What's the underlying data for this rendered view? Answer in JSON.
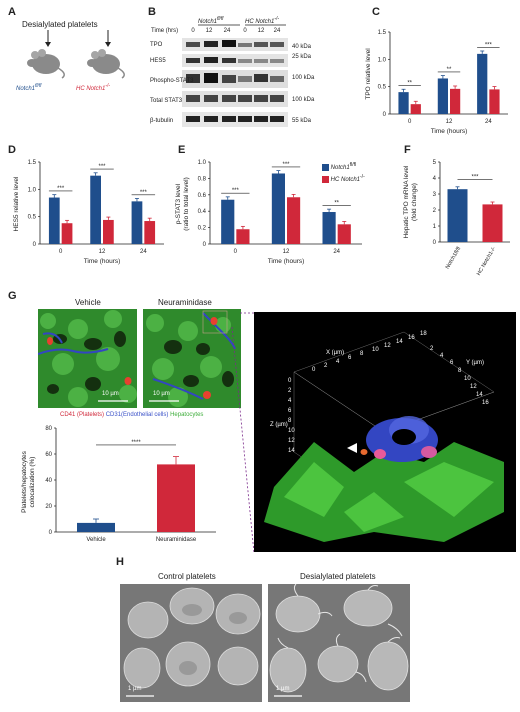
{
  "panel_labels": {
    "A": "A",
    "B": "B",
    "C": "C",
    "D": "D",
    "E": "E",
    "F": "F",
    "G": "G",
    "H": "H"
  },
  "panelA": {
    "title": "Desialylated platelets",
    "mouse1": "Notch1",
    "mouse1_sup": "fl/fl",
    "mouse2": "HC Notch1",
    "mouse2_sup": "-/-"
  },
  "panelB": {
    "group1": "Notch1",
    "group1_sup": "fl/fl",
    "group2": "HC Notch1",
    "group2_sup": "-/-",
    "time_label": "Time (hrs)",
    "times": [
      "0",
      "12",
      "24",
      "0",
      "12",
      "24"
    ],
    "rows": [
      "TPO",
      "HES5",
      "Phospho-STAT3",
      "Total STAT3",
      "β-tubulin"
    ],
    "markers": [
      "40 kDa",
      "25 kDa",
      "100 kDa",
      "100 kDa",
      "55 kDa"
    ]
  },
  "legend": {
    "series1": "Notch1",
    "series1_sup": "fl/fl",
    "series2": "HC Notch1",
    "series2_sup": "-/-"
  },
  "colors": {
    "series1": "#1f4e8c",
    "series2": "#d0283a",
    "green": "#3fae3c",
    "blue": "#3b52c8"
  },
  "chart_data": [
    {
      "id": "C",
      "type": "bar",
      "ylabel": "TPO relative level",
      "xlabel": "Time (hours)",
      "categories": [
        "0",
        "12",
        "24"
      ],
      "ylim": [
        0,
        1.5
      ],
      "yticks": [
        "0",
        "0.5",
        "1.0",
        "1.5"
      ],
      "series": [
        {
          "values": [
            0.4,
            0.65,
            1.1
          ]
        },
        {
          "values": [
            0.18,
            0.46,
            0.45
          ]
        }
      ],
      "significance": [
        "**",
        "**",
        "***"
      ]
    },
    {
      "id": "D",
      "type": "bar",
      "ylabel": "HES5 relative level",
      "xlabel": "Time (hours)",
      "categories": [
        "0",
        "12",
        "24"
      ],
      "ylim": [
        0,
        1.5
      ],
      "yticks": [
        "0",
        "0.5",
        "1.0",
        "1.5"
      ],
      "series": [
        {
          "values": [
            0.85,
            1.25,
            0.78
          ]
        },
        {
          "values": [
            0.38,
            0.44,
            0.42
          ]
        }
      ],
      "significance": [
        "***",
        "***",
        "***"
      ]
    },
    {
      "id": "E",
      "type": "bar",
      "ylabel": "p-STAT3 level (ratio to total level)",
      "xlabel": "Time (hours)",
      "categories": [
        "0",
        "12",
        "24"
      ],
      "ylim": [
        0,
        1.0
      ],
      "yticks": [
        "0",
        "0.2",
        "0.4",
        "0.6",
        "0.8",
        "1.0"
      ],
      "series": [
        {
          "values": [
            0.54,
            0.86,
            0.39
          ]
        },
        {
          "values": [
            0.18,
            0.57,
            0.24
          ]
        }
      ],
      "significance": [
        "***",
        "***",
        "**"
      ]
    },
    {
      "id": "F",
      "type": "bar",
      "ylabel": "Hepatic TPO mRNA level (fold change)",
      "xlabel": "",
      "categories": [
        "Notch1fl/fl",
        "HC Notch1-/-"
      ],
      "ylim": [
        0,
        5
      ],
      "yticks": [
        "0",
        "1",
        "2",
        "3",
        "4",
        "5"
      ],
      "values": [
        3.3,
        2.35
      ],
      "significance": [
        "***"
      ]
    },
    {
      "id": "G",
      "type": "bar",
      "ylabel": "Platelets/hepatocytes colocalization (%)",
      "xlabel": "",
      "categories": [
        "Vehicle",
        "Neuraminidase"
      ],
      "ylim": [
        0,
        80
      ],
      "yticks": [
        "0",
        "20",
        "40",
        "60",
        "80"
      ],
      "values": [
        7,
        52
      ],
      "significance": [
        "****"
      ]
    }
  ],
  "panelG": {
    "img1_title": "Vehicle",
    "img2_title": "Neuraminidase",
    "scale": "10 µm",
    "caption_cd41": "CD41 (Platelets)",
    "caption_cd31": "CD31(Endothelial cells)",
    "caption_hep": "Hepatocytes",
    "axis_x": "X (µm)",
    "axis_y": "Y (µm)",
    "axis_z": "Z (µm)",
    "x_ticks": [
      "0",
      "2",
      "4",
      "6",
      "8",
      "10",
      "12",
      "14",
      "16",
      "18"
    ],
    "y_ticks": [
      "2",
      "4",
      "6",
      "8",
      "10",
      "12",
      "14",
      "16"
    ],
    "z_ticks": [
      "0",
      "2",
      "4",
      "6",
      "8",
      "10",
      "12",
      "14"
    ]
  },
  "panelH": {
    "img1_title": "Control platelets",
    "img2_title": "Desialylated platelets",
    "scale": "1 µm"
  }
}
